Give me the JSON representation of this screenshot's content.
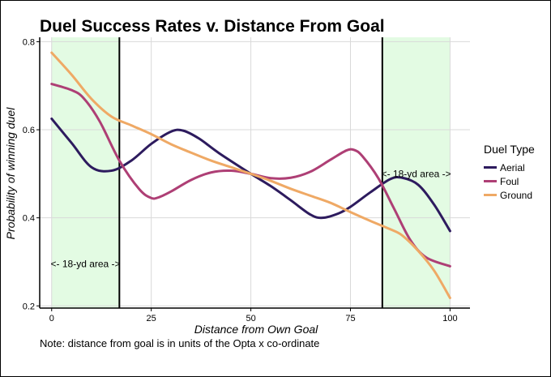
{
  "chart_data": {
    "type": "line",
    "title": "Duel Success Rates v. Distance From Goal",
    "xlabel": "Distance from Own Goal",
    "ylabel": "Probability of winning duel",
    "note": "Note: distance from goal is in units of the Opta x co-ordinate",
    "xlim": [
      -3,
      105
    ],
    "ylim": [
      0.195,
      0.81
    ],
    "x_ticks": [
      0,
      25,
      50,
      75,
      100
    ],
    "y_ticks": [
      0.2,
      0.4,
      0.6,
      0.8
    ],
    "y_tick_labels": [
      "0.2",
      "0.4",
      "0.6",
      "0.8"
    ],
    "grid": true,
    "legend_title": "Duel Type",
    "legend_position": "right",
    "shaded_regions": [
      {
        "x_range": [
          0,
          17
        ],
        "color": "#e3fbe3"
      },
      {
        "x_range": [
          83,
          100
        ],
        "color": "#e3fbe3"
      }
    ],
    "vertical_lines": [
      17,
      83
    ],
    "annotations": [
      {
        "text": "<- 18-yd area ->",
        "x": 8.5,
        "y": 0.295
      },
      {
        "text": "<- 18-yd area ->",
        "x": 91.5,
        "y": 0.5
      }
    ],
    "series": [
      {
        "name": "Aerial",
        "color": "#2d1b5e",
        "points": [
          [
            0,
            0.625
          ],
          [
            5,
            0.57
          ],
          [
            10,
            0.515
          ],
          [
            15,
            0.507
          ],
          [
            20,
            0.53
          ],
          [
            25,
            0.568
          ],
          [
            30,
            0.596
          ],
          [
            33,
            0.598
          ],
          [
            37,
            0.58
          ],
          [
            42,
            0.547
          ],
          [
            50,
            0.5
          ],
          [
            55,
            0.472
          ],
          [
            60,
            0.44
          ],
          [
            65,
            0.407
          ],
          [
            68,
            0.4
          ],
          [
            72,
            0.41
          ],
          [
            75,
            0.425
          ],
          [
            80,
            0.458
          ],
          [
            85,
            0.488
          ],
          [
            88,
            0.491
          ],
          [
            92,
            0.475
          ],
          [
            96,
            0.43
          ],
          [
            100,
            0.37
          ]
        ]
      },
      {
        "name": "Foul",
        "color": "#ae3f75",
        "points": [
          [
            0,
            0.704
          ],
          [
            5,
            0.69
          ],
          [
            8,
            0.672
          ],
          [
            12,
            0.62
          ],
          [
            17,
            0.53
          ],
          [
            22,
            0.465
          ],
          [
            25,
            0.445
          ],
          [
            27,
            0.447
          ],
          [
            30,
            0.46
          ],
          [
            35,
            0.486
          ],
          [
            40,
            0.503
          ],
          [
            45,
            0.507
          ],
          [
            50,
            0.5
          ],
          [
            55,
            0.49
          ],
          [
            60,
            0.491
          ],
          [
            65,
            0.505
          ],
          [
            70,
            0.532
          ],
          [
            74,
            0.553
          ],
          [
            76,
            0.554
          ],
          [
            78,
            0.54
          ],
          [
            82,
            0.49
          ],
          [
            86,
            0.42
          ],
          [
            90,
            0.35
          ],
          [
            94,
            0.31
          ],
          [
            100,
            0.29
          ]
        ]
      },
      {
        "name": "Ground",
        "color": "#efa965",
        "points": [
          [
            0,
            0.775
          ],
          [
            5,
            0.725
          ],
          [
            10,
            0.67
          ],
          [
            15,
            0.63
          ],
          [
            20,
            0.61
          ],
          [
            25,
            0.59
          ],
          [
            30,
            0.567
          ],
          [
            35,
            0.548
          ],
          [
            40,
            0.53
          ],
          [
            45,
            0.515
          ],
          [
            50,
            0.5
          ],
          [
            55,
            0.484
          ],
          [
            60,
            0.466
          ],
          [
            65,
            0.45
          ],
          [
            70,
            0.434
          ],
          [
            75,
            0.413
          ],
          [
            80,
            0.393
          ],
          [
            85,
            0.374
          ],
          [
            88,
            0.36
          ],
          [
            92,
            0.325
          ],
          [
            96,
            0.28
          ],
          [
            100,
            0.218
          ]
        ]
      }
    ]
  }
}
